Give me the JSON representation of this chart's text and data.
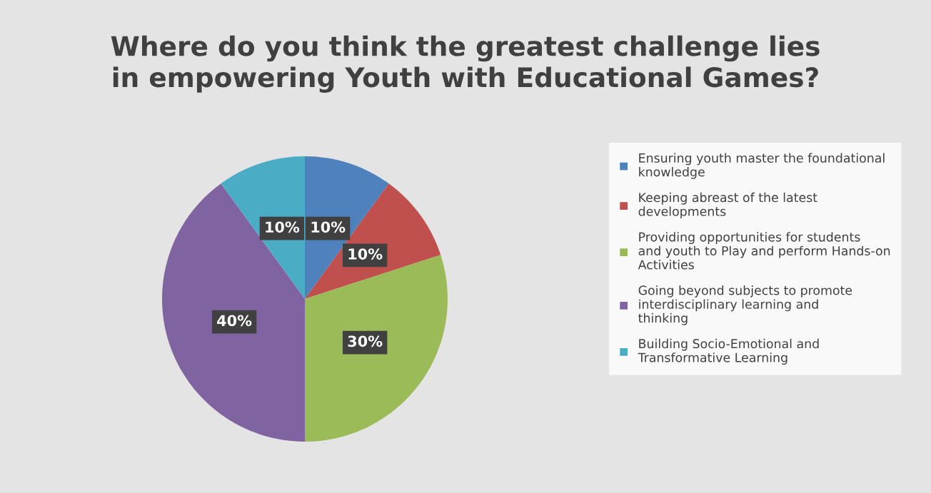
{
  "chart_data": {
    "type": "pie",
    "title": "Where do you think the greatest challenge lies in empowering Youth with Educational Games?",
    "categories": [
      "Ensuring youth master the foundational knowledge",
      "Keeping abreast of the latest developments",
      "Providing opportunities for students and youth to Play and perform Hands-on Activities",
      "Going beyond subjects to promote interdisciplinary learning and thinking",
      "Building Socio-Emotional and Transformative Learning"
    ],
    "values": [
      10,
      10,
      30,
      40,
      10
    ],
    "colors": [
      "#4f81bd",
      "#c0504d",
      "#9bbb59",
      "#8064a2",
      "#4bacc6"
    ],
    "value_labels": [
      "10%",
      "10%",
      "30%",
      "40%",
      "10%"
    ],
    "legend": "right"
  }
}
